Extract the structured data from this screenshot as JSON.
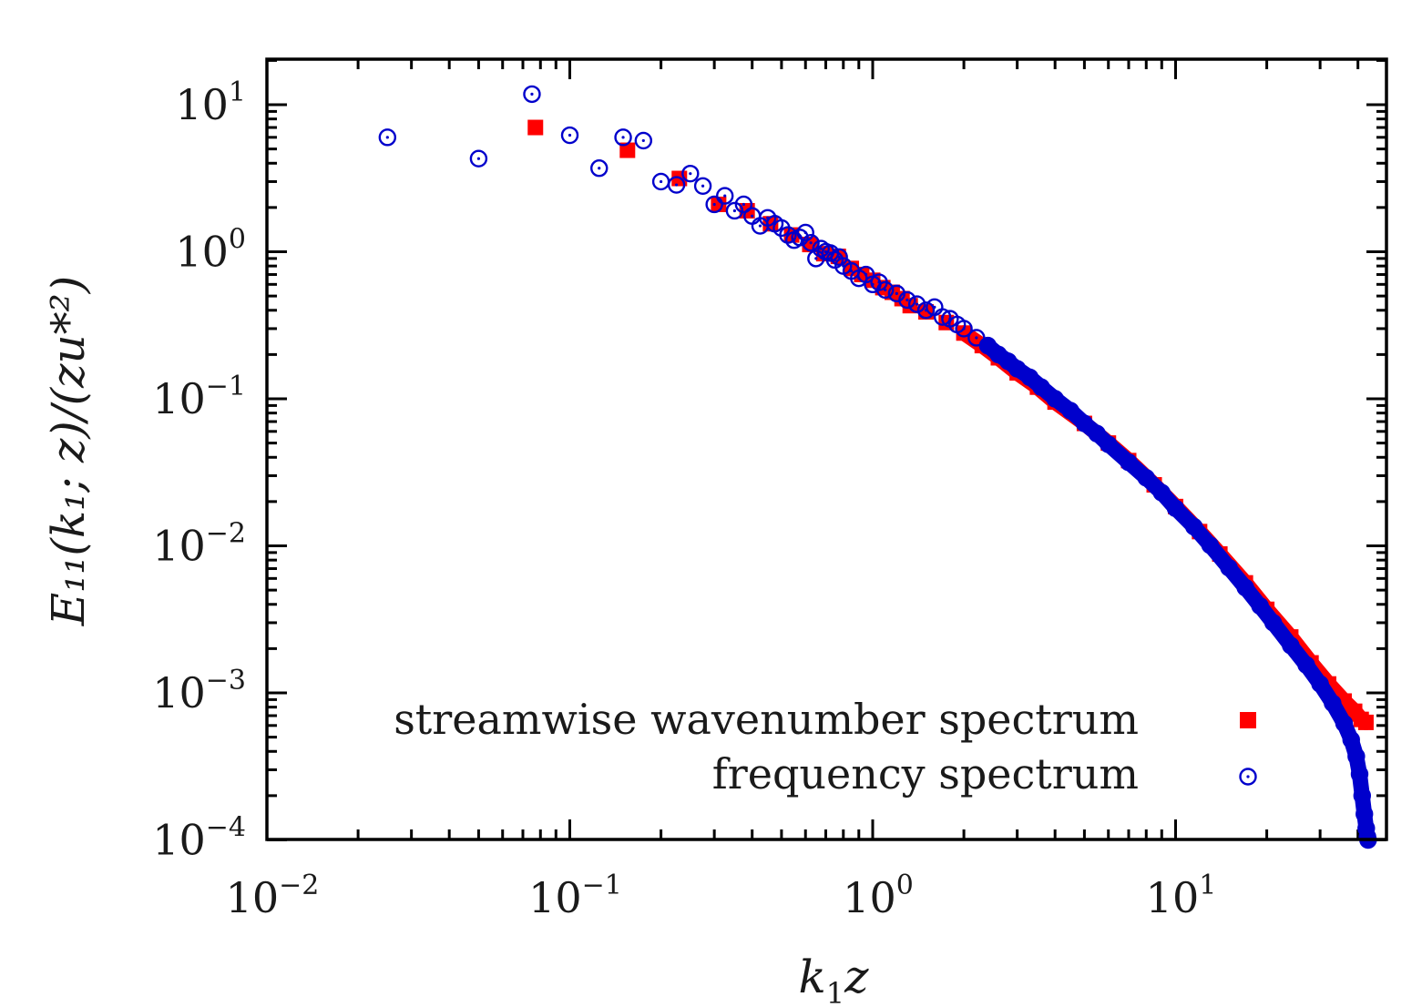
{
  "chart_data": {
    "type": "scatter",
    "title": "",
    "x_scale": "log",
    "y_scale": "log",
    "xlim": [
      0.01,
      52
    ],
    "ylim": [
      0.0001,
      20
    ],
    "xlabel": {
      "main": "k",
      "sub": "1",
      "tail": "z"
    },
    "ylabel": {
      "text": "E₁₁(k₁; z)/(zu*²)"
    },
    "x_ticks": [
      {
        "base": "10",
        "exp": "−2",
        "value": 0.01
      },
      {
        "base": "10",
        "exp": "−1",
        "value": 0.1
      },
      {
        "base": "10",
        "exp": "0",
        "value": 1
      },
      {
        "base": "10",
        "exp": "1",
        "value": 10
      }
    ],
    "y_ticks": [
      {
        "base": "10",
        "exp": "1",
        "value": 10
      },
      {
        "base": "10",
        "exp": "0",
        "value": 1
      },
      {
        "base": "10",
        "exp": "−1",
        "value": 0.1
      },
      {
        "base": "10",
        "exp": "−2",
        "value": 0.01
      },
      {
        "base": "10",
        "exp": "−3",
        "value": 0.001
      },
      {
        "base": "10",
        "exp": "−4",
        "value": 0.0001
      }
    ],
    "legend_position": "bottom-right",
    "series": [
      {
        "name": "streamwise wavenumber spectrum",
        "marker": "filled-square",
        "color": "#ff0000",
        "points": [
          [
            0.077,
            7.0
          ],
          [
            0.155,
            4.9
          ],
          [
            0.23,
            3.15
          ],
          [
            0.31,
            2.1
          ],
          [
            0.385,
            1.9
          ],
          [
            0.46,
            1.55
          ],
          [
            0.54,
            1.3
          ],
          [
            0.62,
            1.12
          ],
          [
            0.69,
            0.97
          ],
          [
            0.77,
            0.93
          ],
          [
            0.85,
            0.77
          ],
          [
            0.92,
            0.7
          ],
          [
            1.0,
            0.64
          ],
          [
            1.08,
            0.57
          ],
          [
            1.16,
            0.53
          ],
          [
            1.25,
            0.48
          ],
          [
            1.33,
            0.43
          ],
          [
            1.5,
            0.39
          ],
          [
            1.75,
            0.33
          ],
          [
            2.0,
            0.28
          ],
          [
            2.3,
            0.23
          ],
          [
            2.6,
            0.19
          ],
          [
            3.0,
            0.15
          ],
          [
            3.5,
            0.12
          ],
          [
            4.0,
            0.095
          ],
          [
            5.0,
            0.068
          ],
          [
            6.0,
            0.05
          ],
          [
            7.0,
            0.038
          ],
          [
            8.5,
            0.026
          ],
          [
            10.0,
            0.0185
          ],
          [
            12.0,
            0.0125
          ],
          [
            14.0,
            0.0088
          ],
          [
            17.0,
            0.0056
          ],
          [
            20.0,
            0.0037
          ],
          [
            24.0,
            0.0024
          ],
          [
            28.0,
            0.0016
          ],
          [
            32.0,
            0.00115
          ],
          [
            36.0,
            0.00088
          ],
          [
            39.0,
            0.00075
          ],
          [
            41.0,
            0.00066
          ],
          [
            42.5,
            0.00063
          ]
        ]
      },
      {
        "name": "frequency spectrum",
        "marker": "open-circle-dot",
        "color": "#0000cc",
        "points": [
          [
            0.025,
            6.0
          ],
          [
            0.05,
            4.3
          ],
          [
            0.075,
            11.8
          ],
          [
            0.1,
            6.2
          ],
          [
            0.125,
            3.7
          ],
          [
            0.15,
            6.0
          ],
          [
            0.175,
            5.7
          ],
          [
            0.2,
            3.0
          ],
          [
            0.225,
            2.85
          ],
          [
            0.25,
            3.4
          ],
          [
            0.275,
            2.8
          ],
          [
            0.3,
            2.1
          ],
          [
            0.325,
            2.4
          ],
          [
            0.35,
            1.9
          ],
          [
            0.375,
            2.1
          ],
          [
            0.4,
            1.75
          ],
          [
            0.425,
            1.5
          ],
          [
            0.45,
            1.7
          ],
          [
            0.475,
            1.55
          ],
          [
            0.5,
            1.45
          ],
          [
            0.525,
            1.3
          ],
          [
            0.55,
            1.2
          ],
          [
            0.575,
            1.25
          ],
          [
            0.6,
            1.35
          ],
          [
            0.625,
            1.15
          ],
          [
            0.65,
            0.9
          ],
          [
            0.675,
            1.05
          ],
          [
            0.7,
            1.0
          ],
          [
            0.725,
            0.98
          ],
          [
            0.75,
            0.88
          ],
          [
            0.775,
            0.92
          ],
          [
            0.8,
            0.8
          ],
          [
            0.85,
            0.74
          ],
          [
            0.9,
            0.66
          ],
          [
            0.95,
            0.7
          ],
          [
            1.0,
            0.6
          ],
          [
            1.05,
            0.62
          ],
          [
            1.1,
            0.55
          ],
          [
            1.2,
            0.52
          ],
          [
            1.3,
            0.47
          ],
          [
            1.4,
            0.44
          ],
          [
            1.5,
            0.4
          ],
          [
            1.6,
            0.42
          ],
          [
            1.7,
            0.36
          ],
          [
            1.8,
            0.35
          ],
          [
            1.9,
            0.32
          ],
          [
            2.0,
            0.3
          ],
          [
            2.2,
            0.26
          ],
          [
            2.4,
            0.23
          ],
          [
            2.6,
            0.2
          ],
          [
            2.8,
            0.18
          ],
          [
            3.0,
            0.16
          ],
          [
            3.3,
            0.14
          ],
          [
            3.6,
            0.12
          ],
          [
            4.0,
            0.1
          ],
          [
            4.5,
            0.083
          ],
          [
            5.0,
            0.068
          ],
          [
            5.5,
            0.058
          ],
          [
            6.0,
            0.049
          ],
          [
            7.0,
            0.037
          ],
          [
            8.0,
            0.029
          ],
          [
            9.0,
            0.023
          ],
          [
            10.0,
            0.018
          ],
          [
            11.5,
            0.0135
          ],
          [
            13.0,
            0.0101
          ],
          [
            15.0,
            0.0071
          ],
          [
            17.0,
            0.0052
          ],
          [
            19.0,
            0.0039
          ],
          [
            21.0,
            0.003
          ],
          [
            24.0,
            0.0021
          ],
          [
            27.0,
            0.00155
          ],
          [
            30.0,
            0.00115
          ],
          [
            33.0,
            0.00085
          ],
          [
            36.0,
            0.00062
          ],
          [
            38.0,
            0.00048
          ],
          [
            39.5,
            0.00037
          ],
          [
            40.5,
            0.00028
          ],
          [
            41.3,
            0.0002
          ],
          [
            42.0,
            0.00015
          ],
          [
            42.6,
            0.00012
          ],
          [
            43.0,
            0.000105
          ],
          [
            43.2,
            0.0001
          ]
        ]
      }
    ]
  },
  "palette": {
    "axis": "#000000",
    "text": "#1a1a1a",
    "wavenumber": "#ff0000",
    "frequency": "#0000cc"
  }
}
